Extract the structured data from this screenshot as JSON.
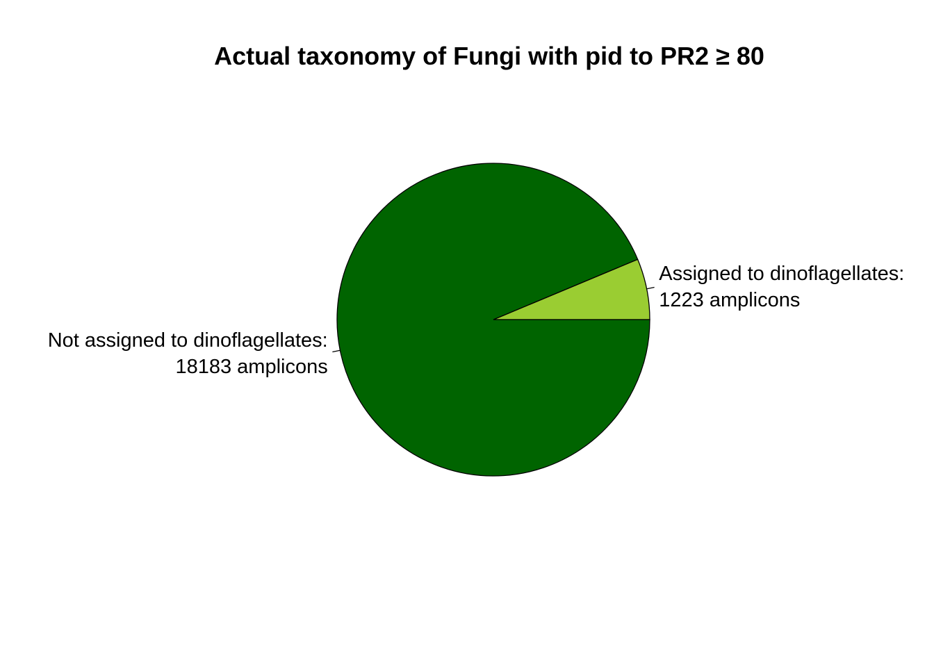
{
  "chart_data": {
    "type": "pie",
    "title": "Actual taxonomy of Fungi with pid to PR2 ≥ 80",
    "slices": [
      {
        "label_line1": "Assigned to dinoflagellates:",
        "label_line2": "1223 amplicons",
        "value": 1223,
        "color": "#9ACD32"
      },
      {
        "label_line1": "Not assigned to dinoflagellates:",
        "label_line2": "18183 amplicons",
        "value": 18183,
        "color": "#006400"
      }
    ],
    "direction": "counterclockwise",
    "start_angle_deg": 0,
    "border_color": "#000000"
  }
}
